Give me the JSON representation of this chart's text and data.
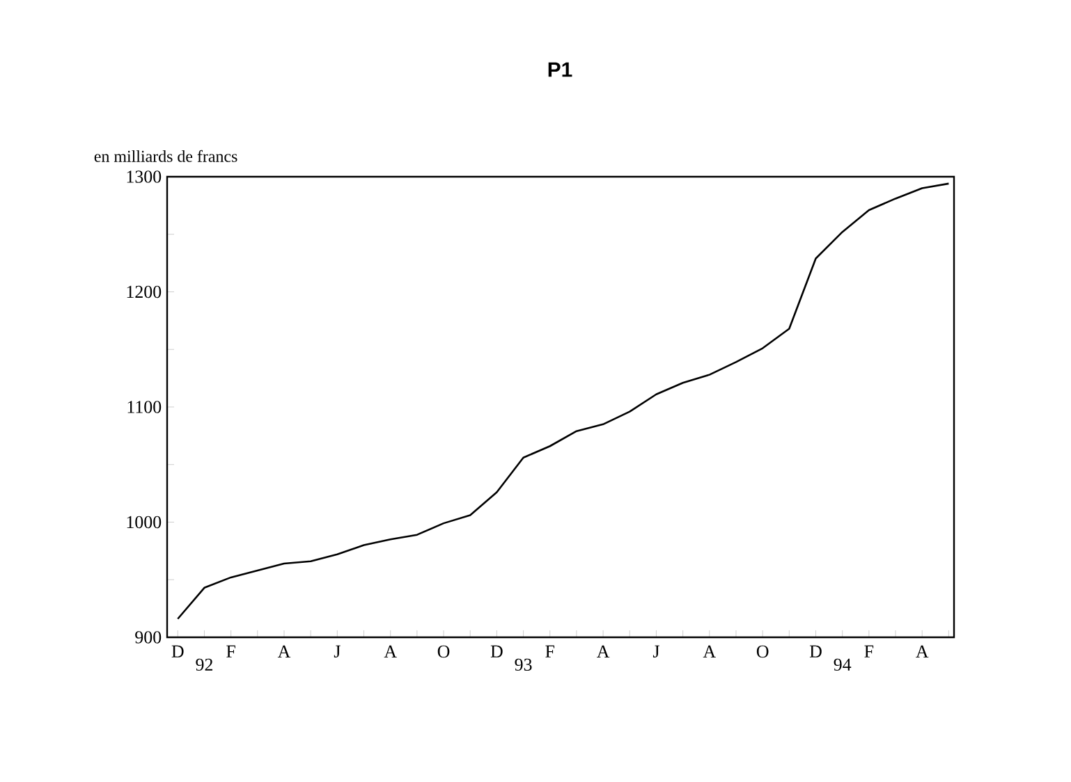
{
  "chart_data": {
    "type": "line",
    "title": "P1",
    "ylabel": "en milliards de francs",
    "categories": [
      "D",
      "92",
      "F",
      null,
      "A",
      null,
      "J",
      null,
      "A",
      null,
      "O",
      null,
      "D",
      "93",
      "F",
      null,
      "A",
      null,
      "J",
      null,
      "A",
      null,
      "O",
      null,
      "D",
      "94",
      "F",
      null,
      "A",
      null
    ],
    "values": [
      916,
      943,
      952,
      958,
      964,
      966,
      972,
      980,
      985,
      989,
      999,
      1006,
      1026,
      1056,
      1066,
      1079,
      1085,
      1096,
      1111,
      1121,
      1128,
      1139,
      1151,
      1168,
      1229,
      1252,
      1271,
      1281,
      1290,
      1294
    ],
    "color": "#000000",
    "ylim": [
      900,
      1300
    ],
    "yticks": [
      900,
      {
        "value": 950,
        "label": null
      },
      1000,
      {
        "value": 1050,
        "label": null
      },
      1100,
      {
        "value": 1150,
        "label": null
      },
      1200,
      {
        "value": 1250,
        "label": null
      },
      1300
    ],
    "grid": false,
    "marker": "none",
    "line_style": "solid"
  }
}
